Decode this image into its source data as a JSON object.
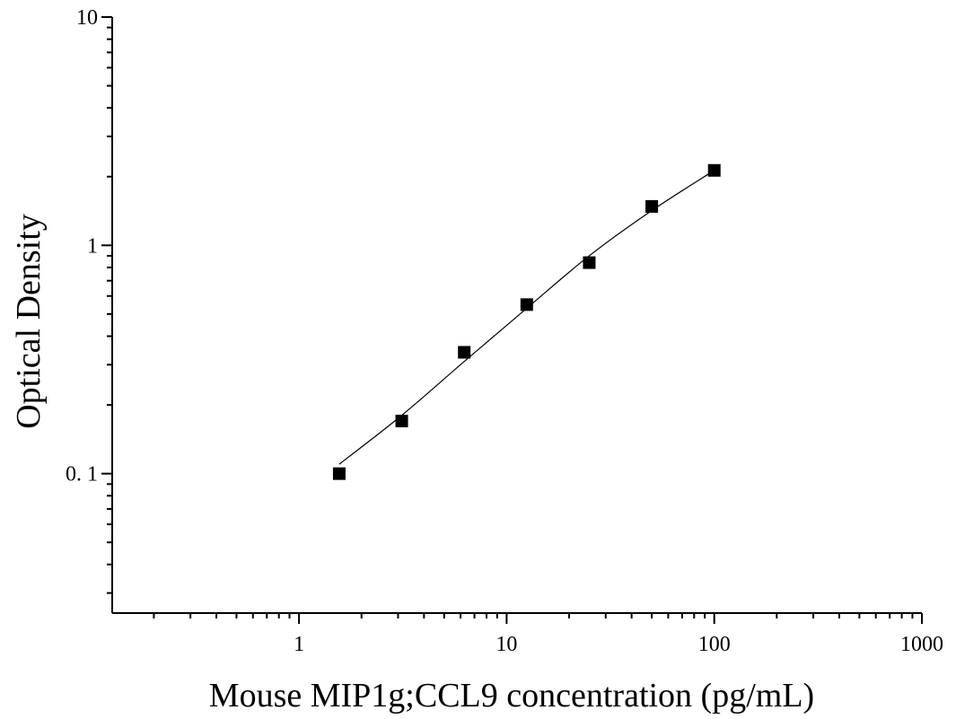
{
  "chart_data": {
    "type": "scatter",
    "xlabel": "Mouse  MIP1g;CCL9 concentration (pg/mL)",
    "ylabel": "Optical Density",
    "xscale": "log",
    "yscale": "log",
    "xlim": [
      0.126,
      1000
    ],
    "ylim": [
      0.0245,
      10
    ],
    "xticks": [
      {
        "value": 1,
        "label": "1"
      },
      {
        "value": 10,
        "label": "10"
      },
      {
        "value": 100,
        "label": "100"
      },
      {
        "value": 1000,
        "label": "1000"
      }
    ],
    "yticks": [
      {
        "value": 0.1,
        "label": "0. 1"
      },
      {
        "value": 1,
        "label": "1"
      },
      {
        "value": 10,
        "label": "10"
      }
    ],
    "grid": false,
    "series": [
      {
        "marker": "square",
        "color": "#000000",
        "points": [
          {
            "x": 1.5625,
            "y": 0.1
          },
          {
            "x": 3.125,
            "y": 0.17
          },
          {
            "x": 6.25,
            "y": 0.34
          },
          {
            "x": 12.5,
            "y": 0.55
          },
          {
            "x": 25,
            "y": 0.84
          },
          {
            "x": 50,
            "y": 1.48
          },
          {
            "x": 100,
            "y": 2.13
          }
        ]
      }
    ],
    "fit_curve": {
      "color": "#000000",
      "points": [
        {
          "x": 1.5625,
          "y": 0.11
        },
        {
          "x": 3.125,
          "y": 0.18
        },
        {
          "x": 6.25,
          "y": 0.31
        },
        {
          "x": 12.5,
          "y": 0.53
        },
        {
          "x": 25,
          "y": 0.9
        },
        {
          "x": 50,
          "y": 1.42
        },
        {
          "x": 100,
          "y": 2.13
        }
      ]
    }
  }
}
